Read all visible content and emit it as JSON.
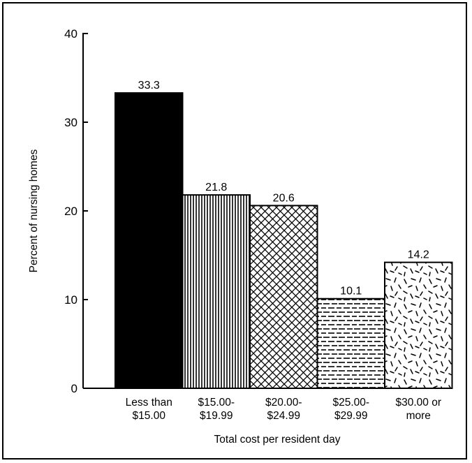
{
  "chart_data": {
    "type": "bar",
    "title": "",
    "xlabel": "Total cost per resident day",
    "ylabel": "Percent of nursing homes",
    "ylim": [
      0,
      40
    ],
    "yticks": [
      "0",
      "10",
      "20",
      "30",
      "40"
    ],
    "grid": false,
    "categories": [
      [
        "Less than",
        "$15.00"
      ],
      [
        "$15.00-",
        "$19.99"
      ],
      [
        "$20.00-",
        "$24.99"
      ],
      [
        "$25.00-",
        "$29.99"
      ],
      [
        "$30.00 or",
        "more"
      ]
    ],
    "values": [
      33.3,
      21.8,
      20.6,
      10.1,
      14.2
    ],
    "value_labels": [
      "33.3",
      "21.8",
      "20.6",
      "10.1",
      "14.2"
    ],
    "bar_patterns": [
      "solid-black",
      "vertical-lines",
      "crosshatch",
      "horizontal-dashes",
      "random-dashes"
    ],
    "colors": {
      "ink": "#000000",
      "background": "#ffffff"
    }
  }
}
